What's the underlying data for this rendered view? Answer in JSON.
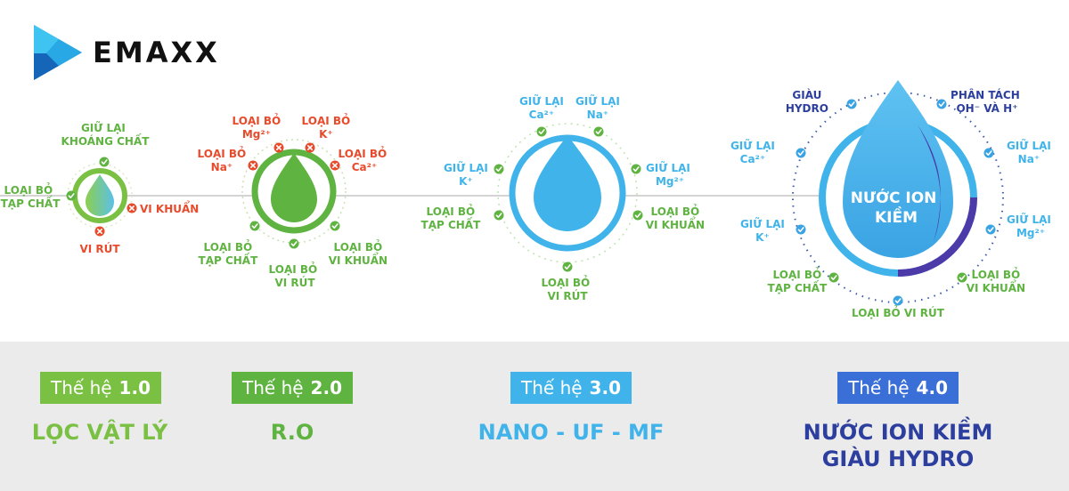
{
  "logo": {
    "text": "EMAXX"
  },
  "colors": {
    "gen1": "#7ac043",
    "gen2": "#5fb341",
    "gen3": "#40b4ea",
    "gen4": "#3a6fd8",
    "removed": "#e84b2c",
    "kept": "#5fb341",
    "name4": "#2d3f9e"
  },
  "diagram": {
    "gen1": {
      "label_top": [
        "GIỮ LẠI",
        "KHOÁNG CHẤT"
      ],
      "label_left": [
        "LOẠI BỎ",
        "TẠP CHẤT"
      ],
      "label_right": "VI KHUẨN",
      "label_bottom": "VI RÚT"
    },
    "gen2": {
      "mg": [
        "LOẠI BỎ",
        "Mg²⁺"
      ],
      "k": [
        "LOẠI BỎ",
        "K⁺"
      ],
      "na": [
        "LOẠI BỎ",
        "Na⁺"
      ],
      "ca": [
        "LOẠI BỎ",
        "Ca²⁺"
      ],
      "tap": [
        "LOẠI BỎ",
        "TẠP CHẤT"
      ],
      "vk": [
        "LOẠI BỎ",
        "VI KHUẨN"
      ],
      "vr": [
        "LOẠI BỎ",
        "VI RÚT"
      ]
    },
    "gen3": {
      "ca": [
        "GIỮ LẠI",
        "Ca²⁺"
      ],
      "na": [
        "GIỮ LẠI",
        "Na⁺"
      ],
      "k": [
        "GIỮ LẠI",
        "K⁺"
      ],
      "mg": [
        "GIỮ LẠI",
        "Mg²⁺"
      ],
      "tap": [
        "LOẠI BỎ",
        "TẠP CHẤT"
      ],
      "vk": [
        "LOẠI BỎ",
        "VI KHUẨN"
      ],
      "vr": [
        "LOẠI BỎ",
        "VI RÚT"
      ]
    },
    "gen4": {
      "center": [
        "NƯỚC ION",
        "KIỀM"
      ],
      "hydro": [
        "GIÀU",
        "HYDRO"
      ],
      "split": [
        "PHÂN TÁCH",
        "OH⁻ VÀ H⁺"
      ],
      "ca": [
        "GIỮ LẠI",
        "Ca²⁺"
      ],
      "na": [
        "GIỮ LẠI",
        "Na⁺"
      ],
      "k": [
        "GIỮ LẠI",
        "K⁺"
      ],
      "mg": [
        "GIỮ LẠI",
        "Mg²⁺"
      ],
      "tap": [
        "LOẠI BỎ",
        "TẠP CHẤT"
      ],
      "vk": [
        "LOẠI BỎ",
        "VI KHUẨN"
      ],
      "vr": "LOẠI BỎ VI RÚT"
    }
  },
  "generations": [
    {
      "prefix": "Thế hệ",
      "version": "1.0",
      "name": [
        "LỌC VẬT LÝ"
      ]
    },
    {
      "prefix": "Thế hệ",
      "version": "2.0",
      "name": [
        "R.O"
      ]
    },
    {
      "prefix": "Thế hệ",
      "version": "3.0",
      "name": [
        "NANO - UF - MF"
      ]
    },
    {
      "prefix": "Thế hệ",
      "version": "4.0",
      "name": [
        "NƯỚC ION KIỀM",
        "GIÀU HYDRO"
      ]
    }
  ]
}
